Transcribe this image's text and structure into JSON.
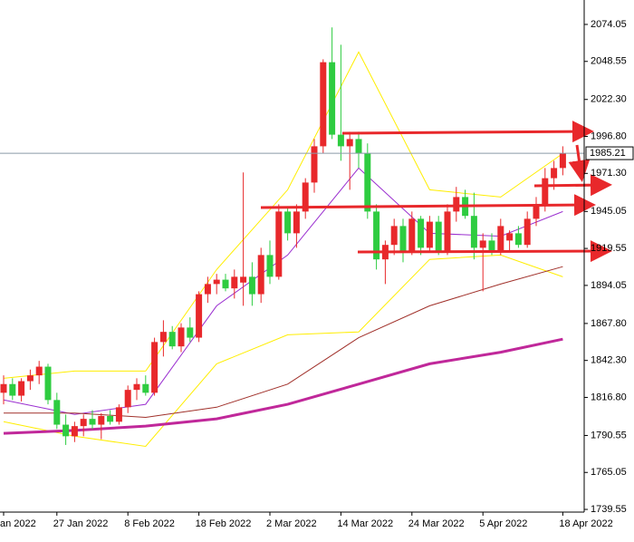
{
  "chart_data": {
    "type": "candlestick",
    "categories": [
      "an 2022",
      null,
      null,
      null,
      null,
      null,
      "27 Jan 2022",
      null,
      null,
      null,
      null,
      null,
      null,
      null,
      "8 Feb 2022",
      null,
      null,
      null,
      null,
      null,
      null,
      null,
      "18 Feb 2022",
      null,
      null,
      null,
      null,
      null,
      null,
      null,
      "2 Mar 2022",
      null,
      null,
      null,
      null,
      null,
      null,
      null,
      "14 Mar 2022",
      null,
      null,
      null,
      null,
      null,
      null,
      null,
      "24 Mar 2022",
      null,
      null,
      null,
      null,
      null,
      null,
      null,
      "5 Apr 2022",
      null,
      null,
      null,
      null,
      null,
      null,
      null,
      null,
      "18 Apr 2022"
    ],
    "open": [
      1820,
      1826,
      1818,
      1828,
      1832,
      1838,
      1815,
      1798,
      1790,
      1797,
      1802,
      1798,
      1804,
      1800,
      1810,
      1822,
      1826,
      1820,
      1855,
      1862,
      1852,
      1865,
      1858,
      1888,
      1895,
      1898,
      1892,
      1896,
      1900,
      1888,
      1915,
      1900,
      1945,
      1930,
      1945,
      1965,
      1990,
      2048,
      1998,
      1990,
      1995,
      1985,
      1945,
      1912,
      1922,
      1935,
      1918,
      1940,
      1920,
      1938,
      1918,
      1945,
      1955,
      1942,
      1920,
      1925,
      1918,
      1925,
      1930,
      1922,
      1940,
      1950,
      1968,
      1975
    ],
    "high": [
      1832,
      1830,
      1830,
      1836,
      1842,
      1840,
      1820,
      1805,
      1800,
      1805,
      1808,
      1806,
      1808,
      1812,
      1825,
      1830,
      1832,
      1858,
      1870,
      1866,
      1868,
      1872,
      1890,
      1900,
      1902,
      1902,
      1905,
      1972,
      1910,
      1920,
      1925,
      1950,
      1948,
      1950,
      1968,
      1995,
      2050,
      2072,
      2060,
      2000,
      2000,
      1992,
      1950,
      1925,
      1940,
      1940,
      1945,
      1942,
      1942,
      1942,
      1950,
      1962,
      1960,
      1958,
      1930,
      1930,
      1940,
      1932,
      1935,
      1945,
      1955,
      1975,
      1980,
      1990
    ],
    "low": [
      1812,
      1815,
      1814,
      1822,
      1826,
      1812,
      1795,
      1784,
      1786,
      1790,
      1795,
      1788,
      1798,
      1798,
      1806,
      1815,
      1818,
      1818,
      1845,
      1850,
      1848,
      1855,
      1855,
      1882,
      1888,
      1890,
      1885,
      1880,
      1880,
      1882,
      1895,
      1898,
      1925,
      1920,
      1940,
      1958,
      1985,
      1995,
      1980,
      1960,
      1975,
      1940,
      1905,
      1895,
      1915,
      1910,
      1915,
      1915,
      1918,
      1915,
      1915,
      1938,
      1940,
      1912,
      1890,
      1915,
      1915,
      1918,
      1920,
      1920,
      1935,
      1945,
      1960,
      1970
    ],
    "close": [
      1826,
      1818,
      1828,
      1832,
      1838,
      1815,
      1798,
      1790,
      1797,
      1802,
      1798,
      1804,
      1800,
      1810,
      1822,
      1826,
      1820,
      1855,
      1862,
      1852,
      1865,
      1858,
      1888,
      1895,
      1898,
      1892,
      1900,
      1900,
      1888,
      1915,
      1900,
      1945,
      1930,
      1945,
      1965,
      1990,
      2048,
      1998,
      1990,
      1995,
      1985,
      1945,
      1912,
      1922,
      1935,
      1918,
      1940,
      1920,
      1938,
      1918,
      1945,
      1955,
      1942,
      1920,
      1925,
      1918,
      1935,
      1930,
      1922,
      1940,
      1950,
      1968,
      1975,
      1985.21
    ],
    "up_color": "#e8282b",
    "down_color": "#2ecc40",
    "ylim": [
      1737.7,
      2090.9
    ],
    "yticks": [
      2074.05,
      2048.55,
      {
        "value": 2022.3,
        "label": "2022.30"
      },
      {
        "value": 1996.8,
        "label": "1996.80"
      },
      {
        "value": 1971.3,
        "label": "1971.30"
      },
      1945.05,
      1919.55,
      1894.05,
      {
        "value": 1867.8,
        "label": "1867.80"
      },
      {
        "value": 1842.3,
        "label": "1842.30"
      },
      {
        "value": 1816.8,
        "label": "1816.80"
      },
      1790.55,
      1765.05,
      1739.55
    ],
    "last_price_line": true,
    "lines": [
      {
        "color": "#ffee00",
        "width": 1,
        "x": [
          0,
          8,
          16,
          24,
          32,
          40,
          48,
          56,
          63
        ],
        "values": [
          1830,
          1835,
          1835,
          1905,
          1960,
          2055,
          1960,
          1955,
          1985
        ]
      },
      {
        "color": "#ffee00",
        "width": 1,
        "x": [
          0,
          8,
          16,
          24,
          32,
          40,
          48,
          56,
          63
        ],
        "values": [
          1800,
          1790,
          1783,
          1840,
          1860,
          1862,
          1912,
          1915,
          1900
        ]
      },
      {
        "color": "#9b30d0",
        "width": 1,
        "x": [
          0,
          8,
          16,
          24,
          32,
          40,
          48,
          56,
          63
        ],
        "values": [
          1815,
          1805,
          1812,
          1880,
          1915,
          1975,
          1930,
          1928,
          1945
        ]
      },
      {
        "color": "#a0302a",
        "width": 1,
        "x": [
          0,
          8,
          16,
          24,
          32,
          40,
          48,
          56,
          63
        ],
        "values": [
          1806,
          1806,
          1803,
          1810,
          1826,
          1858,
          1880,
          1895,
          1907
        ]
      },
      {
        "color": "#c0289a",
        "width": 3,
        "x": [
          0,
          8,
          16,
          24,
          32,
          40,
          48,
          56,
          63
        ],
        "values": [
          1792,
          1794,
          1797,
          1802,
          1812,
          1826,
          1840,
          1848,
          1857
        ]
      }
    ]
  }
}
